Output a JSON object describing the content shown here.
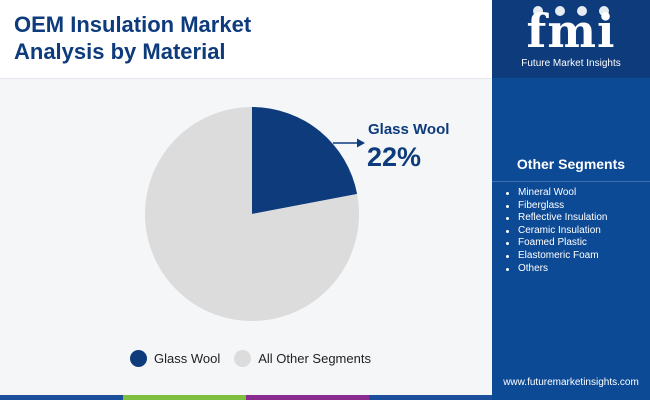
{
  "title_line1": "OEM Insulation Market",
  "title_line2": "Analysis by Material",
  "chart_data": {
    "type": "pie",
    "title": "OEM Insulation Market Analysis by Material",
    "categories": [
      "Glass Wool",
      "All Other Segments"
    ],
    "values": [
      22,
      78
    ],
    "unit": "%",
    "colors": [
      "#0d3b7c",
      "#dcdcdc"
    ],
    "annotation": {
      "label": "Glass Wool",
      "value": "22%"
    },
    "legend": "bottom"
  },
  "legend": [
    {
      "label": "Glass Wool",
      "color": "#0d3b7c"
    },
    {
      "label": "All Other Segments",
      "color": "#dcdcdc"
    }
  ],
  "sidebar": {
    "logo_letters": "fmi",
    "logo_tagline": "Future Market Insights",
    "other_title": "Other Segments",
    "other_items": [
      "Mineral Wool",
      "Fiberglass",
      "Reflective Insulation",
      "Ceramic Insulation",
      "Foamed Plastic",
      "Elastomeric Foam",
      "Others"
    ],
    "website": "www.futuremarketinsights.com"
  },
  "colors": {
    "brand_dark": "#0d3b7c",
    "sidebar_bg": "#0d4a96",
    "bottom_bar": [
      "#1b4f9c",
      "#7fbf3f",
      "#8a2c8f",
      "#1b4f9c"
    ]
  }
}
